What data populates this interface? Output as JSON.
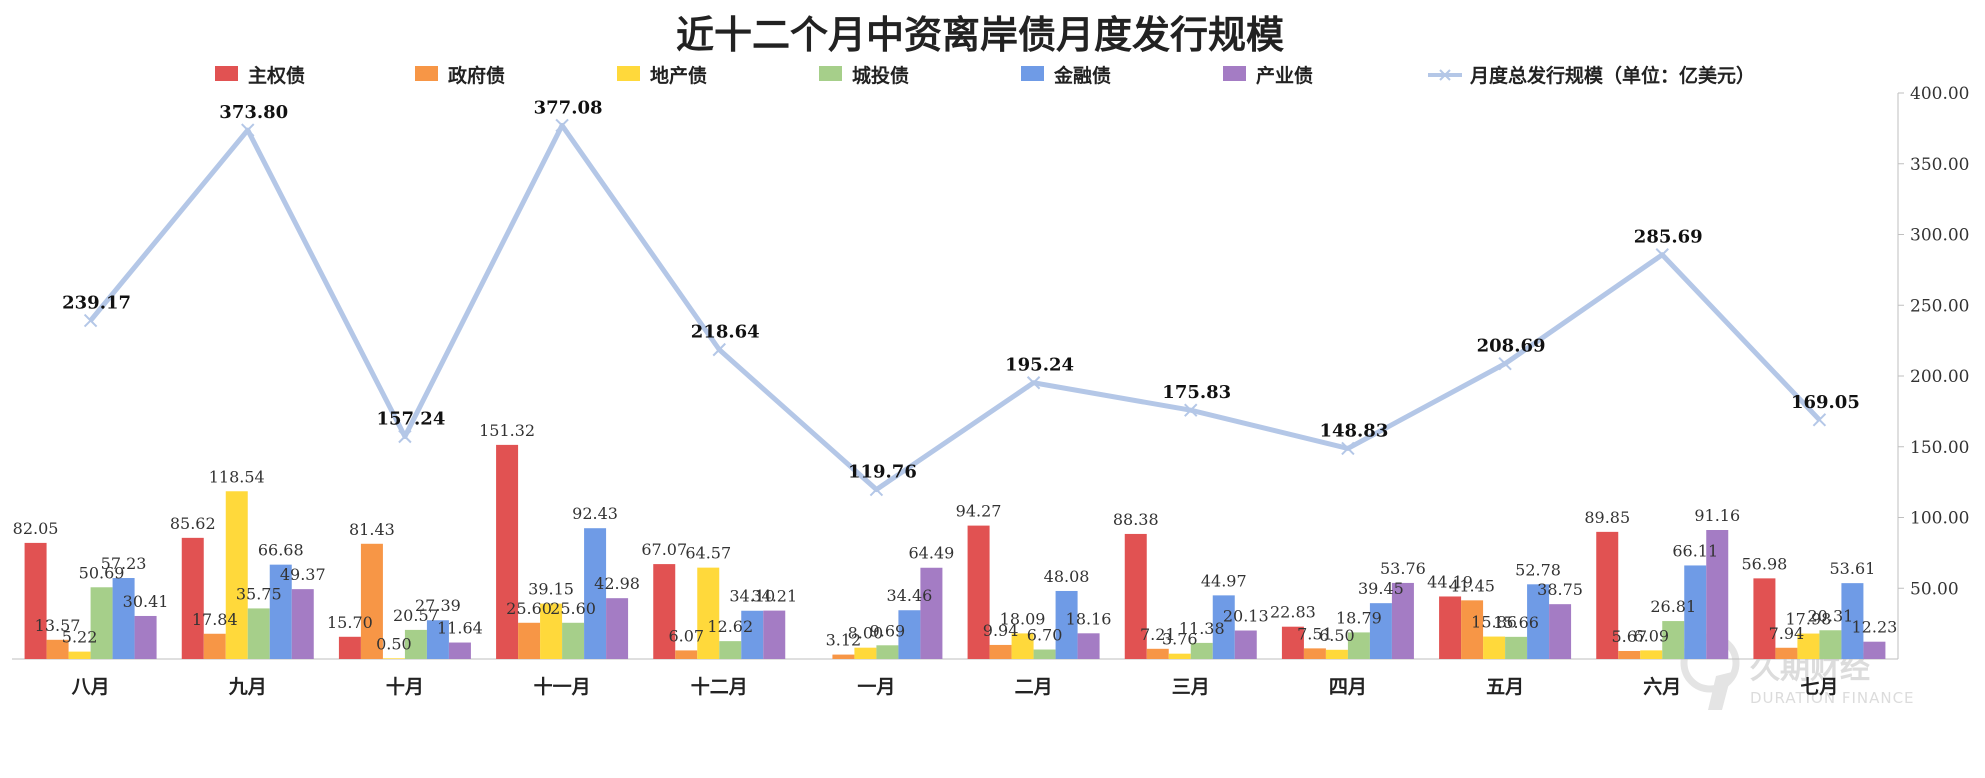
{
  "chart_data": {
    "type": "bar",
    "title": "近十二个月中资离岸债月度发行规模",
    "categories": [
      "八月",
      "九月",
      "十月",
      "十一月",
      "十二月",
      "一月",
      "二月",
      "三月",
      "四月",
      "五月",
      "六月",
      "七月"
    ],
    "series": [
      {
        "name": "主权债",
        "color": "#e15252",
        "values": [
          82.05,
          85.62,
          15.7,
          151.32,
          67.07,
          null,
          94.27,
          88.38,
          22.83,
          44.19,
          89.85,
          56.98
        ],
        "labels": [
          "82.05",
          "85.62",
          "15.70",
          "151.32",
          "67.07",
          "",
          "94.27",
          "88.38",
          "22.83",
          "44.19",
          "89.85",
          "56.98"
        ]
      },
      {
        "name": "政府债",
        "color": "#f79646",
        "values": [
          13.57,
          17.84,
          81.43,
          25.6,
          6.07,
          3.12,
          9.94,
          7.21,
          7.51,
          41.45,
          5.67,
          7.94
        ],
        "labels": [
          "13.57",
          "17.84",
          "81.43",
          "25.60",
          "6.07",
          "3.12",
          "9.94",
          "7.21",
          "7.51",
          "41.45",
          "5.67",
          "7.94"
        ]
      },
      {
        "name": "地产债",
        "color": "#ffd93b",
        "values": [
          5.22,
          118.54,
          0.5,
          39.15,
          64.57,
          8.0,
          18.09,
          3.76,
          6.5,
          15.86,
          6.09,
          17.98
        ],
        "labels": [
          "5.22",
          "118.54",
          "0.50",
          "39.15",
          "64.57",
          "8.00",
          "18.09",
          "3.76",
          "6.50",
          "15.86",
          "6.09",
          "17.98"
        ]
      },
      {
        "name": "城投债",
        "color": "#a6cf8a",
        "values": [
          50.69,
          35.75,
          20.57,
          25.6,
          12.62,
          9.69,
          6.7,
          11.38,
          18.79,
          15.66,
          26.81,
          20.31
        ],
        "labels": [
          "50.69",
          "35.75",
          "20.57",
          "25.60",
          "12.62",
          "9.69",
          "6.70",
          "11.38",
          "18.79",
          "15.66",
          "26.81",
          "20.31"
        ]
      },
      {
        "name": "金融债",
        "color": "#6f9be6",
        "values": [
          57.23,
          66.68,
          27.39,
          92.43,
          34.1,
          34.46,
          48.08,
          44.97,
          39.45,
          52.78,
          66.11,
          53.61
        ],
        "labels": [
          "57.23",
          "66.68",
          "27.39",
          "92.43",
          "34.10",
          "34.46",
          "48.08",
          "44.97",
          "39.45",
          "52.78",
          "66.11",
          "53.61"
        ]
      },
      {
        "name": "产业债",
        "color": "#a47cc4",
        "values": [
          30.41,
          49.37,
          11.64,
          42.98,
          34.21,
          64.49,
          18.16,
          20.13,
          53.76,
          38.75,
          91.16,
          12.23
        ],
        "labels": [
          "30.41",
          "49.37",
          "11.64",
          "42.98",
          "34.21",
          "64.49",
          "18.16",
          "20.13",
          "53.76",
          "38.75",
          "91.16",
          "12.23"
        ]
      }
    ],
    "line": {
      "name": "月度总发行规模（单位：亿美元）",
      "color": "#b4c7e7",
      "values": [
        239.17,
        373.8,
        157.24,
        377.08,
        218.64,
        119.76,
        195.24,
        175.83,
        148.83,
        208.69,
        285.69,
        169.05
      ],
      "labels": [
        "239.17",
        "373.80",
        "157.24",
        "377.08",
        "218.64",
        "119.76",
        "195.24",
        "175.83",
        "148.83",
        "208.69",
        "285.69",
        "169.05"
      ]
    },
    "y_axis": {
      "side": "right",
      "ylim": [
        0,
        400
      ],
      "ticks": [
        "50.00",
        "100.00",
        "150.00",
        "200.00",
        "250.00",
        "300.00",
        "350.00",
        "400.00"
      ],
      "tick_values": [
        50,
        100,
        150,
        200,
        250,
        300,
        350,
        400
      ]
    },
    "legend": "top",
    "grid": false
  },
  "watermark": {
    "text": "久期财经",
    "subtext": "DURATION FINANCE"
  }
}
